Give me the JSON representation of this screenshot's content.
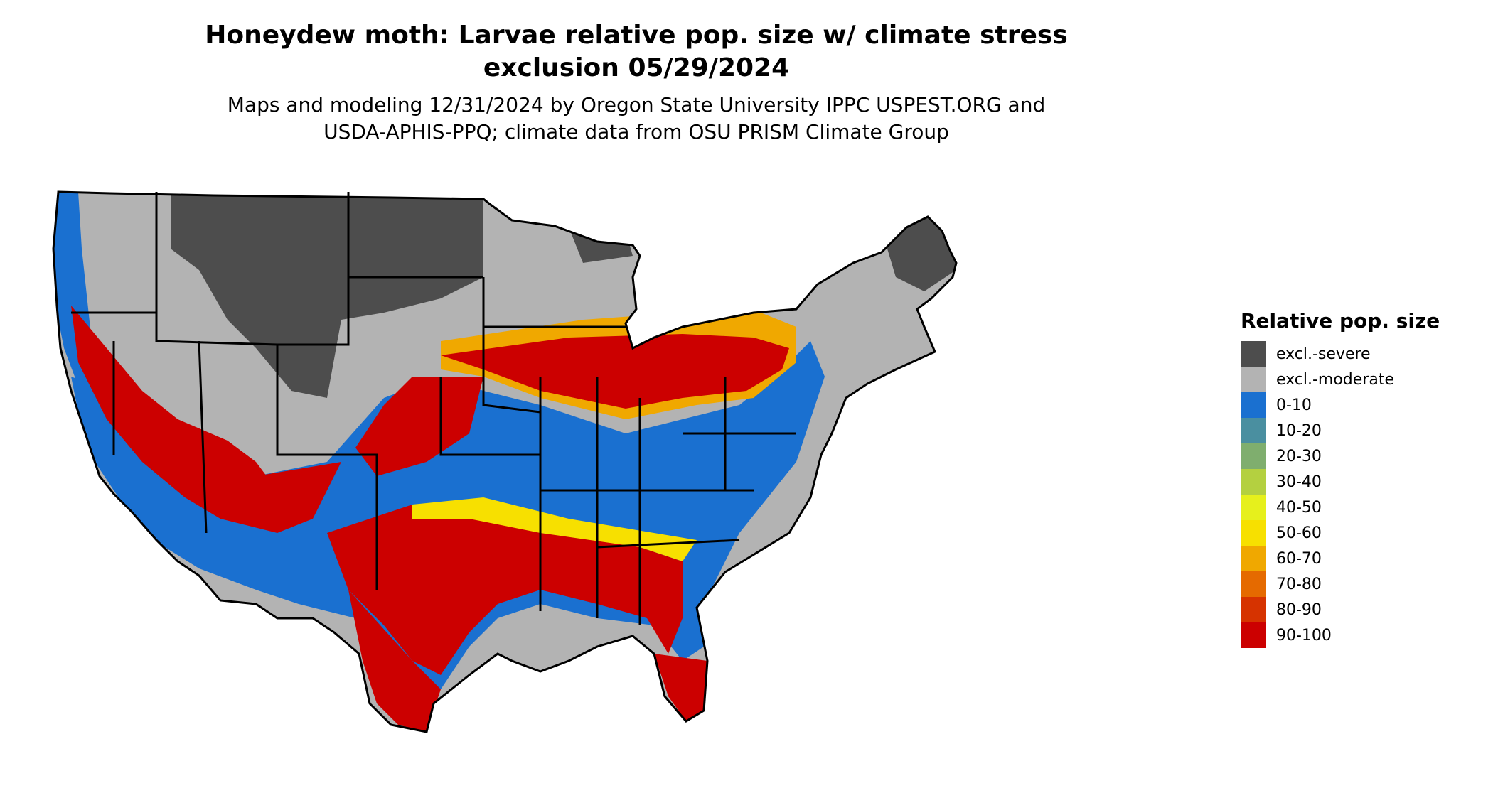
{
  "title": {
    "line1": "Honeydew moth: Larvae relative pop. size w/ climate stress",
    "line2": "exclusion 05/29/2024"
  },
  "subtitle": {
    "line1": "Maps and modeling 12/31/2024 by Oregon State University IPPC USPEST.ORG and",
    "line2": "USDA-APHIS-PPQ; climate data from OSU PRISM Climate Group"
  },
  "legend": {
    "title": "Relative pop. size",
    "items": [
      {
        "label": "excl.-severe",
        "color": "#4d4d4d"
      },
      {
        "label": "excl.-moderate",
        "color": "#b3b3b3"
      },
      {
        "label": "0-10",
        "color": "#1a70d0"
      },
      {
        "label": "10-20",
        "color": "#4a8fa0"
      },
      {
        "label": "20-30",
        "color": "#7fae6e"
      },
      {
        "label": "30-40",
        "color": "#b4d040"
      },
      {
        "label": "40-50",
        "color": "#e6f01c"
      },
      {
        "label": "50-60",
        "color": "#f7e000"
      },
      {
        "label": "60-70",
        "color": "#f0a800"
      },
      {
        "label": "70-80",
        "color": "#e56a00"
      },
      {
        "label": "80-90",
        "color": "#d63300"
      },
      {
        "label": "90-100",
        "color": "#cc0000"
      }
    ]
  }
}
